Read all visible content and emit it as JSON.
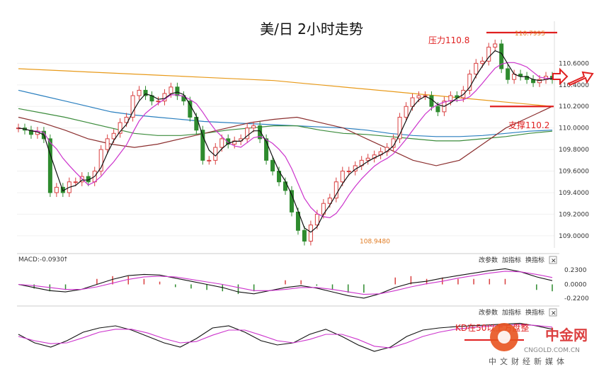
{
  "chart_data": {
    "type": "line",
    "title": "美/日 2小时走势",
    "price_axis": {
      "ticks": [
        "110.6000",
        "110.4000",
        "110.2000",
        "110.0000",
        "109.8000",
        "109.6000",
        "109.4000",
        "109.2000",
        "109.0000"
      ],
      "ylim": [
        108.92,
        110.78
      ]
    },
    "annotations": {
      "high_label": "110.7995",
      "high_value": 110.7995,
      "low_label": "108.9480",
      "low_value": 108.948,
      "resistance_label": "压力110.8",
      "resistance_value": 110.8,
      "support_label": "支撑110.2",
      "support_value": 110.2
    },
    "close_series": [
      110.0,
      109.98,
      109.94,
      109.97,
      109.9,
      109.4,
      109.45,
      109.4,
      109.5,
      109.5,
      109.55,
      109.5,
      109.6,
      109.8,
      109.9,
      109.95,
      110.05,
      110.1,
      110.3,
      110.35,
      110.3,
      110.25,
      110.25,
      110.32,
      110.38,
      110.3,
      110.25,
      110.1,
      109.98,
      109.7,
      109.7,
      109.82,
      109.9,
      109.85,
      109.88,
      109.9,
      110.0,
      110.02,
      109.9,
      109.7,
      109.6,
      109.5,
      109.42,
      109.22,
      109.05,
      108.95,
      109.1,
      109.2,
      109.3,
      109.35,
      109.5,
      109.6,
      109.6,
      109.65,
      109.7,
      109.72,
      109.75,
      109.78,
      109.82,
      109.9,
      110.1,
      110.2,
      110.28,
      110.3,
      110.3,
      110.2,
      110.15,
      110.25,
      110.3,
      110.28,
      110.35,
      110.5,
      110.6,
      110.62,
      110.75,
      110.78,
      110.55,
      110.45,
      110.5,
      110.48,
      110.45,
      110.42,
      110.45,
      110.48,
      110.45
    ],
    "moving_averages": [
      {
        "color": "#e89a1a",
        "values": [
          110.55,
          110.54,
          110.53,
          110.52,
          110.51,
          110.5,
          110.49,
          110.48,
          110.47,
          110.46,
          110.45,
          110.44,
          110.42,
          110.4,
          110.38,
          110.36,
          110.34,
          110.32,
          110.3,
          110.28,
          110.26,
          110.24,
          110.22,
          110.2
        ]
      },
      {
        "color": "#2a7fbf",
        "values": [
          110.35,
          110.3,
          110.25,
          110.2,
          110.15,
          110.12,
          110.1,
          110.08,
          110.06,
          110.05,
          110.04,
          110.03,
          110.02,
          110.01,
          110.0,
          109.98,
          109.95,
          109.93,
          109.92,
          109.92,
          109.93,
          109.95,
          109.97,
          109.98
        ]
      },
      {
        "color": "#3c8c3c",
        "values": [
          110.18,
          110.14,
          110.1,
          110.05,
          110.0,
          109.95,
          109.93,
          109.93,
          109.95,
          109.98,
          110.0,
          110.02,
          110.02,
          109.98,
          109.95,
          109.94,
          109.92,
          109.9,
          109.88,
          109.88,
          109.9,
          109.92,
          109.95,
          109.97
        ]
      },
      {
        "color": "#8b2e2e",
        "values": [
          110.1,
          110.05,
          109.98,
          109.9,
          109.85,
          109.82,
          109.85,
          109.9,
          109.95,
          110.0,
          110.05,
          110.08,
          110.1,
          110.05,
          110.0,
          109.9,
          109.8,
          109.7,
          109.65,
          109.7,
          109.85,
          110.0,
          110.1,
          110.2
        ]
      }
    ],
    "macd": {
      "label": "MACD:-0.0930",
      "ticks": [
        "0.2300",
        "0.0000",
        "-0.2200"
      ],
      "ylim": [
        -0.3,
        0.3
      ],
      "dif": [
        0.0,
        -0.05,
        -0.1,
        -0.12,
        -0.08,
        0.0,
        0.08,
        0.14,
        0.16,
        0.15,
        0.1,
        0.05,
        0.0,
        -0.05,
        -0.12,
        -0.15,
        -0.1,
        -0.05,
        -0.02,
        -0.06,
        -0.12,
        -0.18,
        -0.22,
        -0.15,
        -0.05,
        0.02,
        0.05,
        0.1,
        0.14,
        0.18,
        0.22,
        0.25,
        0.2,
        0.12,
        0.06
      ],
      "dea": [
        0.0,
        -0.02,
        -0.05,
        -0.08,
        -0.08,
        -0.04,
        0.02,
        0.08,
        0.12,
        0.13,
        0.12,
        0.08,
        0.04,
        0.0,
        -0.05,
        -0.1,
        -0.1,
        -0.08,
        -0.05,
        -0.05,
        -0.08,
        -0.12,
        -0.16,
        -0.15,
        -0.1,
        -0.04,
        0.01,
        0.05,
        0.1,
        0.14,
        0.18,
        0.21,
        0.2,
        0.16,
        0.11
      ]
    },
    "kd": {
      "label": "KD在50以上方盘整",
      "k": [
        60,
        40,
        30,
        45,
        65,
        75,
        80,
        70,
        55,
        40,
        30,
        50,
        75,
        80,
        65,
        45,
        35,
        40,
        60,
        72,
        55,
        35,
        20,
        30,
        55,
        70,
        75,
        78,
        80,
        82,
        84,
        86,
        80,
        72
      ],
      "d": [
        55,
        45,
        38,
        40,
        52,
        65,
        72,
        72,
        63,
        50,
        40,
        43,
        58,
        70,
        70,
        58,
        45,
        40,
        48,
        60,
        60,
        48,
        32,
        28,
        40,
        55,
        65,
        72,
        76,
        79,
        81,
        83,
        81,
        77
      ],
      "ylim": [
        0,
        100
      ]
    },
    "toolbar": {
      "params": "改参数",
      "add": "加指标",
      "switch": "换指标",
      "close": "✕"
    },
    "watermark": {
      "brand": "中金网",
      "domain": "CNGOLD.COM.CN",
      "slogan": "中文财经新媒体"
    }
  }
}
